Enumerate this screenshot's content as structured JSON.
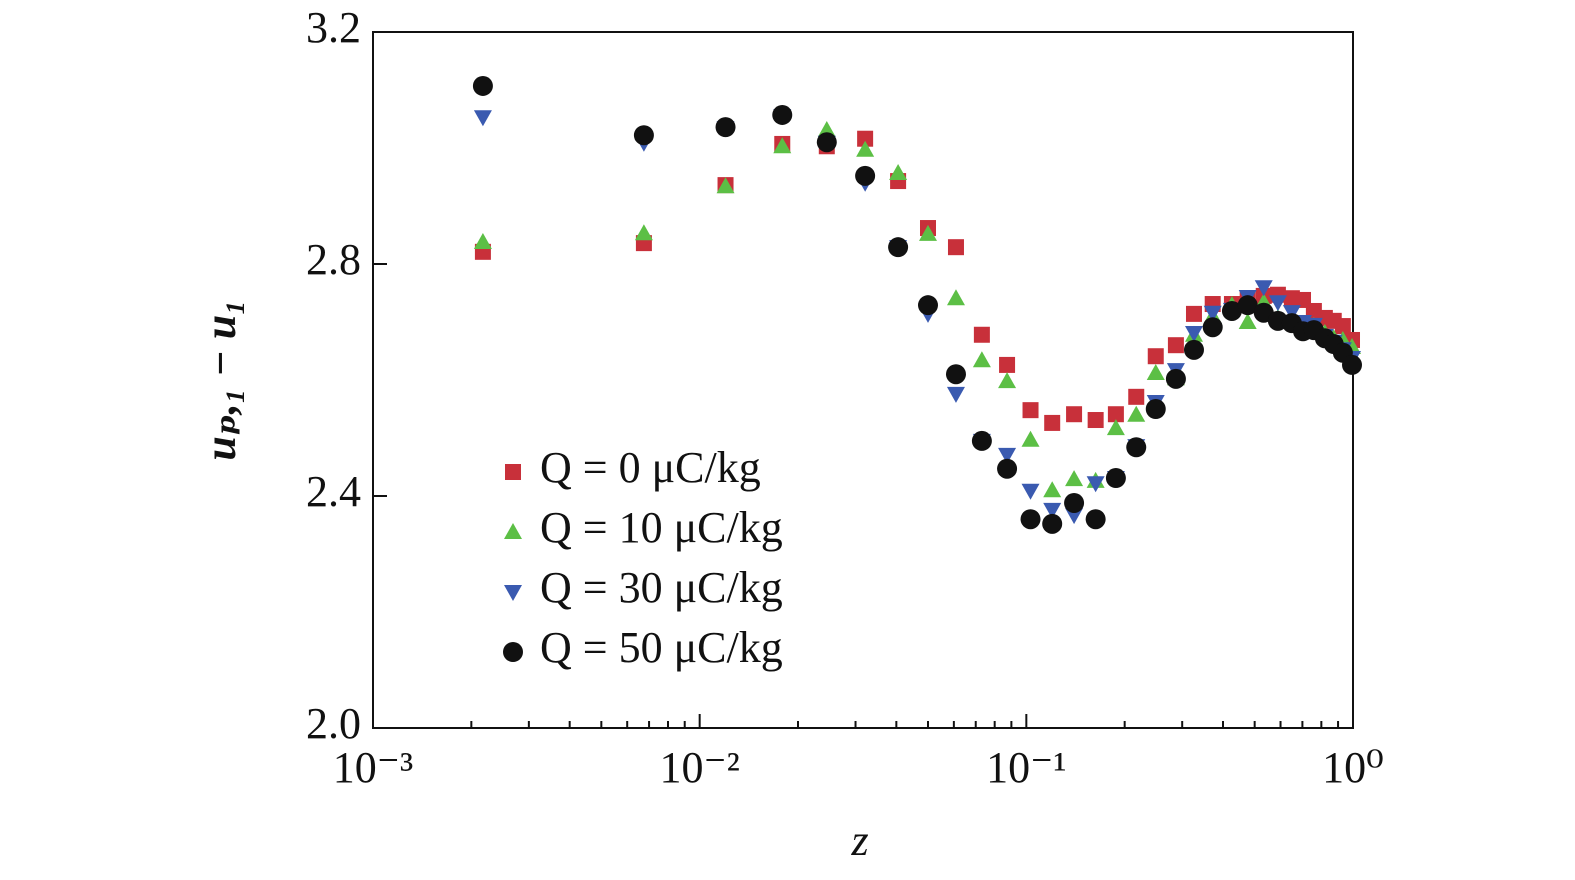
{
  "chart_data": {
    "type": "scatter",
    "xlabel": "z",
    "ylabel": "uₚ,₁ − u₁",
    "xscale": "log",
    "xlim": [
      0.001,
      1
    ],
    "ylim": [
      2.0,
      3.2
    ],
    "xticks": [
      {
        "value": 0.001,
        "label": "10⁻³"
      },
      {
        "value": 0.01,
        "label": "10⁻²"
      },
      {
        "value": 0.1,
        "label": "10⁻¹"
      },
      {
        "value": 1,
        "label": "10⁰"
      }
    ],
    "xminorticks": [
      0.002,
      0.003,
      0.004,
      0.005,
      0.006,
      0.007,
      0.008,
      0.009,
      0.02,
      0.03,
      0.04,
      0.05,
      0.06,
      0.07,
      0.08,
      0.09,
      0.2,
      0.3,
      0.4,
      0.5,
      0.6,
      0.7,
      0.8,
      0.9
    ],
    "yticks": [
      {
        "value": 2.0,
        "label": "2.0"
      },
      2.4,
      2.8,
      3.2
    ],
    "legend": "lower-left",
    "x": [
      0.00217,
      0.00675,
      0.012,
      0.0179,
      0.0245,
      0.0321,
      0.0405,
      0.05,
      0.0609,
      0.0731,
      0.0873,
      0.103,
      0.12,
      0.14,
      0.163,
      0.188,
      0.217,
      0.249,
      0.287,
      0.326,
      0.372,
      0.426,
      0.476,
      0.533,
      0.589,
      0.65,
      0.703,
      0.759,
      0.82,
      0.873,
      0.931,
      0.993
    ],
    "series": [
      {
        "name": "Q = 0 μC/kg",
        "color": "#c8303a",
        "marker": "square",
        "values": [
          2.821,
          2.836,
          2.936,
          3.007,
          3.003,
          3.016,
          2.943,
          2.862,
          2.829,
          2.678,
          2.626,
          2.548,
          2.526,
          2.541,
          2.531,
          2.541,
          2.571,
          2.641,
          2.66,
          2.714,
          2.731,
          2.731,
          2.741,
          2.745,
          2.747,
          2.741,
          2.738,
          2.719,
          2.707,
          2.702,
          2.693,
          2.669
        ]
      },
      {
        "name": "Q = 10 μC/kg",
        "color": "#5cbf45",
        "marker": "triangle-up",
        "values": [
          2.838,
          2.853,
          2.934,
          3.003,
          3.031,
          2.997,
          2.957,
          2.852,
          2.741,
          2.634,
          2.598,
          2.497,
          2.41,
          2.429,
          2.426,
          2.517,
          2.54,
          2.612,
          2.603,
          2.678,
          2.71,
          2.729,
          2.7,
          2.734,
          2.707,
          2.703,
          2.697,
          2.693,
          2.681,
          2.672,
          2.669,
          2.657
        ]
      },
      {
        "name": "Q = 30 μC/kg",
        "color": "#3a5ab0",
        "marker": "triangle-down",
        "values": [
          3.053,
          3.009,
          3.034,
          3.055,
          3.009,
          2.94,
          2.829,
          2.714,
          2.576,
          2.495,
          2.471,
          2.409,
          2.376,
          2.367,
          2.422,
          2.431,
          2.486,
          2.562,
          2.617,
          2.681,
          2.716,
          2.721,
          2.743,
          2.76,
          2.734,
          2.717,
          2.7,
          2.695,
          2.676,
          2.666,
          2.653,
          2.638
        ]
      },
      {
        "name": "Q = 50 μC/kg",
        "color": "#111111",
        "marker": "circle",
        "values": [
          3.107,
          3.022,
          3.036,
          3.057,
          3.01,
          2.952,
          2.829,
          2.729,
          2.61,
          2.495,
          2.447,
          2.36,
          2.352,
          2.388,
          2.36,
          2.431,
          2.484,
          2.55,
          2.602,
          2.652,
          2.691,
          2.719,
          2.729,
          2.716,
          2.702,
          2.698,
          2.684,
          2.686,
          2.672,
          2.662,
          2.647,
          2.626
        ]
      }
    ]
  }
}
